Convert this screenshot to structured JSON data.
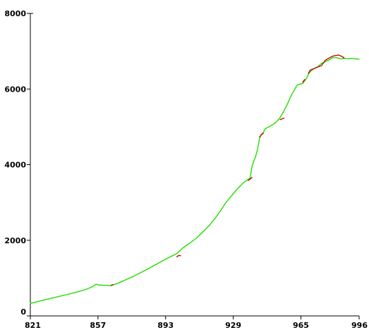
{
  "chart_data": {
    "type": "line",
    "title": "",
    "xlabel": "",
    "ylabel": "",
    "xlim": [
      821,
      996
    ],
    "ylim": [
      0,
      8000
    ],
    "x_ticks": [
      821,
      857,
      893,
      929,
      965,
      996
    ],
    "y_ticks": [
      0,
      2000,
      4000,
      6000,
      8000
    ],
    "grid": false,
    "legend": "none",
    "colors": {
      "green": "#22dd00",
      "red": "#cc0000"
    },
    "series": [
      {
        "color": "#22dd00",
        "x": [
          821,
          825,
          830,
          835,
          840,
          845,
          850,
          854,
          856,
          857,
          860,
          864,
          868,
          872,
          876,
          880,
          885,
          890,
          895,
          899,
          902,
          906,
          910,
          913,
          916,
          919,
          922,
          925,
          928,
          931,
          934,
          936,
          938,
          939,
          940,
          941,
          942,
          943,
          944,
          945,
          946,
          948,
          950,
          952,
          954,
          956,
          958,
          960,
          962,
          963,
          964,
          966,
          968,
          969,
          970,
          972,
          974,
          976,
          978,
          980,
          982,
          984,
          986,
          988,
          990,
          992,
          994,
          996
        ],
        "y": [
          330,
          380,
          440,
          500,
          560,
          620,
          690,
          770,
          840,
          820,
          810,
          800,
          870,
          960,
          1050,
          1150,
          1280,
          1420,
          1550,
          1650,
          1790,
          1930,
          2080,
          2230,
          2380,
          2560,
          2760,
          2990,
          3170,
          3350,
          3500,
          3580,
          3650,
          3960,
          4100,
          4230,
          4420,
          4700,
          4800,
          4850,
          4950,
          5000,
          5060,
          5130,
          5250,
          5420,
          5620,
          5840,
          6020,
          6100,
          6120,
          6150,
          6280,
          6390,
          6460,
          6540,
          6590,
          6680,
          6720,
          6770,
          6830,
          6830,
          6800,
          6810,
          6800,
          6810,
          6800,
          6790
        ]
      },
      {
        "color": "#cc0000",
        "x": [
          864,
          865
        ],
        "y": [
          810,
          830
        ]
      },
      {
        "color": "#cc0000",
        "x": [
          899,
          900,
          901
        ],
        "y": [
          1560,
          1600,
          1590
        ]
      },
      {
        "color": "#cc0000",
        "x": [
          937,
          938,
          939
        ],
        "y": [
          3580,
          3620,
          3660
        ]
      },
      {
        "color": "#cc0000",
        "x": [
          943,
          944,
          945
        ],
        "y": [
          4730,
          4790,
          4830
        ]
      },
      {
        "color": "#cc0000",
        "x": [
          954,
          955,
          956
        ],
        "y": [
          5190,
          5210,
          5230
        ]
      },
      {
        "color": "#cc0000",
        "x": [
          966,
          967
        ],
        "y": [
          6180,
          6250
        ]
      },
      {
        "color": "#cc0000",
        "x": [
          969,
          970,
          972,
          974,
          976,
          978,
          980,
          982,
          984,
          985,
          986,
          987,
          988
        ],
        "y": [
          6420,
          6500,
          6540,
          6580,
          6620,
          6760,
          6820,
          6870,
          6890,
          6900,
          6880,
          6860,
          6820
        ]
      }
    ]
  }
}
